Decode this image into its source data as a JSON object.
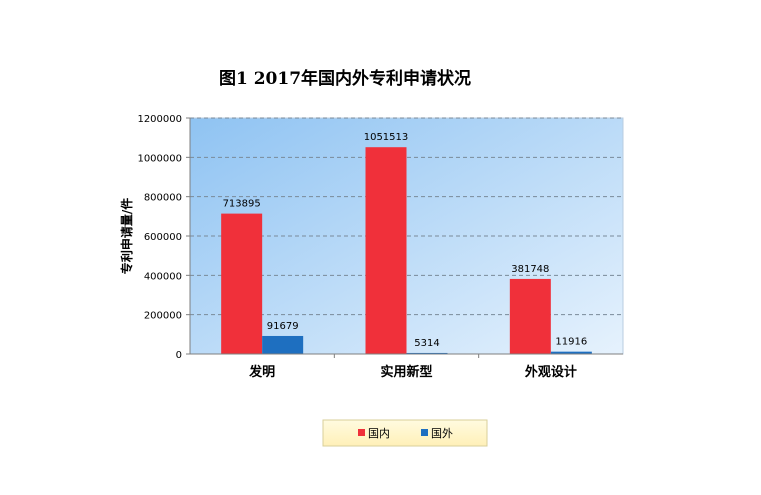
{
  "chart_data": {
    "type": "bar",
    "title": "图1   2017年国内外专利申请状况",
    "xlabel": "",
    "ylabel": "专利申请量/件",
    "categories": [
      "发明",
      "实用新型",
      "外观设计"
    ],
    "series": [
      {
        "name": "国内",
        "values": [
          713895,
          1051513,
          381748
        ],
        "color": "#f0303a"
      },
      {
        "name": "国外",
        "values": [
          91679,
          5314,
          11916
        ],
        "color": "#1e6fc0"
      }
    ],
    "ylim": [
      0,
      1200000
    ],
    "yticks": [
      "0",
      "200000",
      "400000",
      "600000",
      "800000",
      "1000000",
      "1200000"
    ],
    "grid": true,
    "legend": "bottom"
  }
}
